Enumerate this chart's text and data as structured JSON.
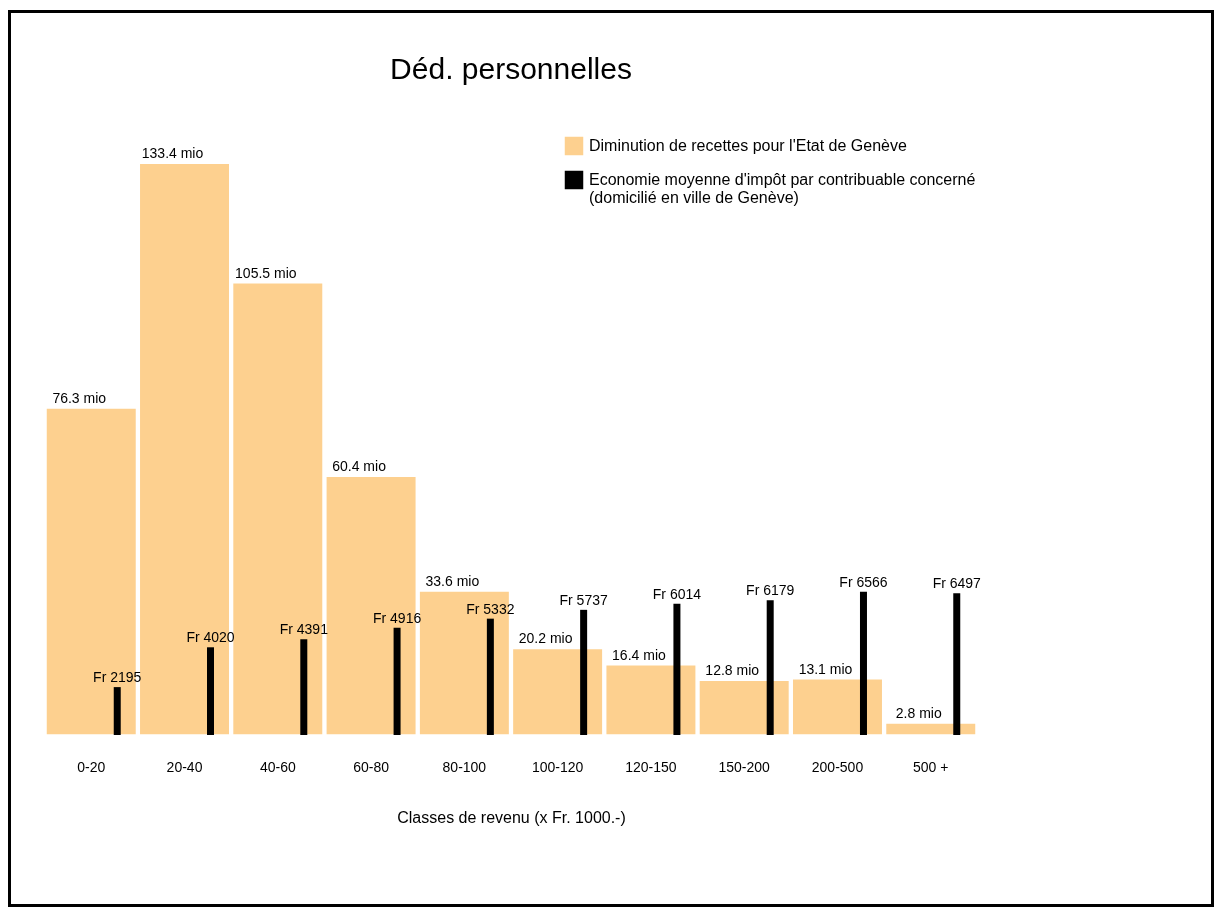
{
  "chart_data": {
    "type": "bar",
    "title": "Déd. personnelles",
    "xlabel": "Classes de revenu (x Fr. 1000.-)",
    "categories": [
      "0-20",
      "20-40",
      "40-60",
      "60-80",
      "80-100",
      "100-120",
      "120-150",
      "150-200",
      "200-500",
      "500 +"
    ],
    "series": [
      {
        "name": "Diminution de recettes pour l'Etat de Genève",
        "color": "#fdd08f",
        "values": [
          76.3,
          133.4,
          105.5,
          60.4,
          33.6,
          20.2,
          16.4,
          12.8,
          13.1,
          2.8
        ],
        "value_labels": [
          "76.3 mio",
          "133.4 mio",
          "105.5 mio",
          "60.4 mio",
          "33.6 mio",
          "20.2 mio",
          "16.4 mio",
          "12.8 mio",
          "13.1 mio",
          "2.8 mio"
        ]
      },
      {
        "name": "Economie moyenne d'impôt par contribuable concerné\n(domicilié en ville de Genève)",
        "color": "#000000",
        "axis": "y2",
        "values": [
          2195,
          4020,
          4391,
          4916,
          5332,
          5737,
          6014,
          6179,
          6566,
          6497
        ],
        "value_labels": [
          "Fr 2195",
          "Fr 4020",
          "Fr 4391",
          "Fr 4916",
          "Fr 5332",
          "Fr 5737",
          "Fr 6014",
          "Fr 6179",
          "Fr 6566",
          "Fr 6497"
        ]
      }
    ],
    "ylim": [
      0,
      140
    ],
    "y2lim": [
      0,
      27500
    ],
    "legend": "top right"
  }
}
